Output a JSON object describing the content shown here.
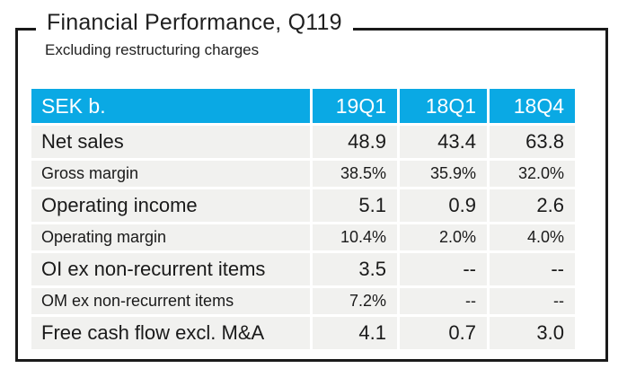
{
  "card": {
    "title": "Financial Performance, Q119",
    "subtitle": "Excluding restructuring charges"
  },
  "colors": {
    "header_bg": "#0AA9E4",
    "header_text": "#FFFFFF",
    "row_bg": "#F1F1EF",
    "body_text": "#1A1A1A",
    "frame": "#1A1A1A"
  },
  "chart_data": {
    "type": "table",
    "title": "Financial Performance, Q119",
    "subtitle": "Excluding restructuring charges",
    "unit": "SEK b.",
    "columns": [
      "SEK b.",
      "19Q1",
      "18Q1",
      "18Q4"
    ],
    "rows": [
      {
        "label": "Net sales",
        "values": [
          "48.9",
          "43.4",
          "63.8"
        ],
        "emphasis": "large"
      },
      {
        "label": "Gross margin",
        "values": [
          "38.5%",
          "35.9%",
          "32.0%"
        ],
        "emphasis": "small"
      },
      {
        "label": "Operating income",
        "values": [
          "5.1",
          "0.9",
          "2.6"
        ],
        "emphasis": "large"
      },
      {
        "label": "Operating margin",
        "values": [
          "10.4%",
          "2.0%",
          "4.0%"
        ],
        "emphasis": "small"
      },
      {
        "label": "OI ex non-recurrent items",
        "values": [
          "3.5",
          "--",
          "--"
        ],
        "emphasis": "large"
      },
      {
        "label": "OM ex non-recurrent items",
        "values": [
          "7.2%",
          "--",
          "--"
        ],
        "emphasis": "small"
      },
      {
        "label": "Free cash flow excl. M&A",
        "values": [
          "4.1",
          "0.7",
          "3.0"
        ],
        "emphasis": "large"
      }
    ]
  }
}
